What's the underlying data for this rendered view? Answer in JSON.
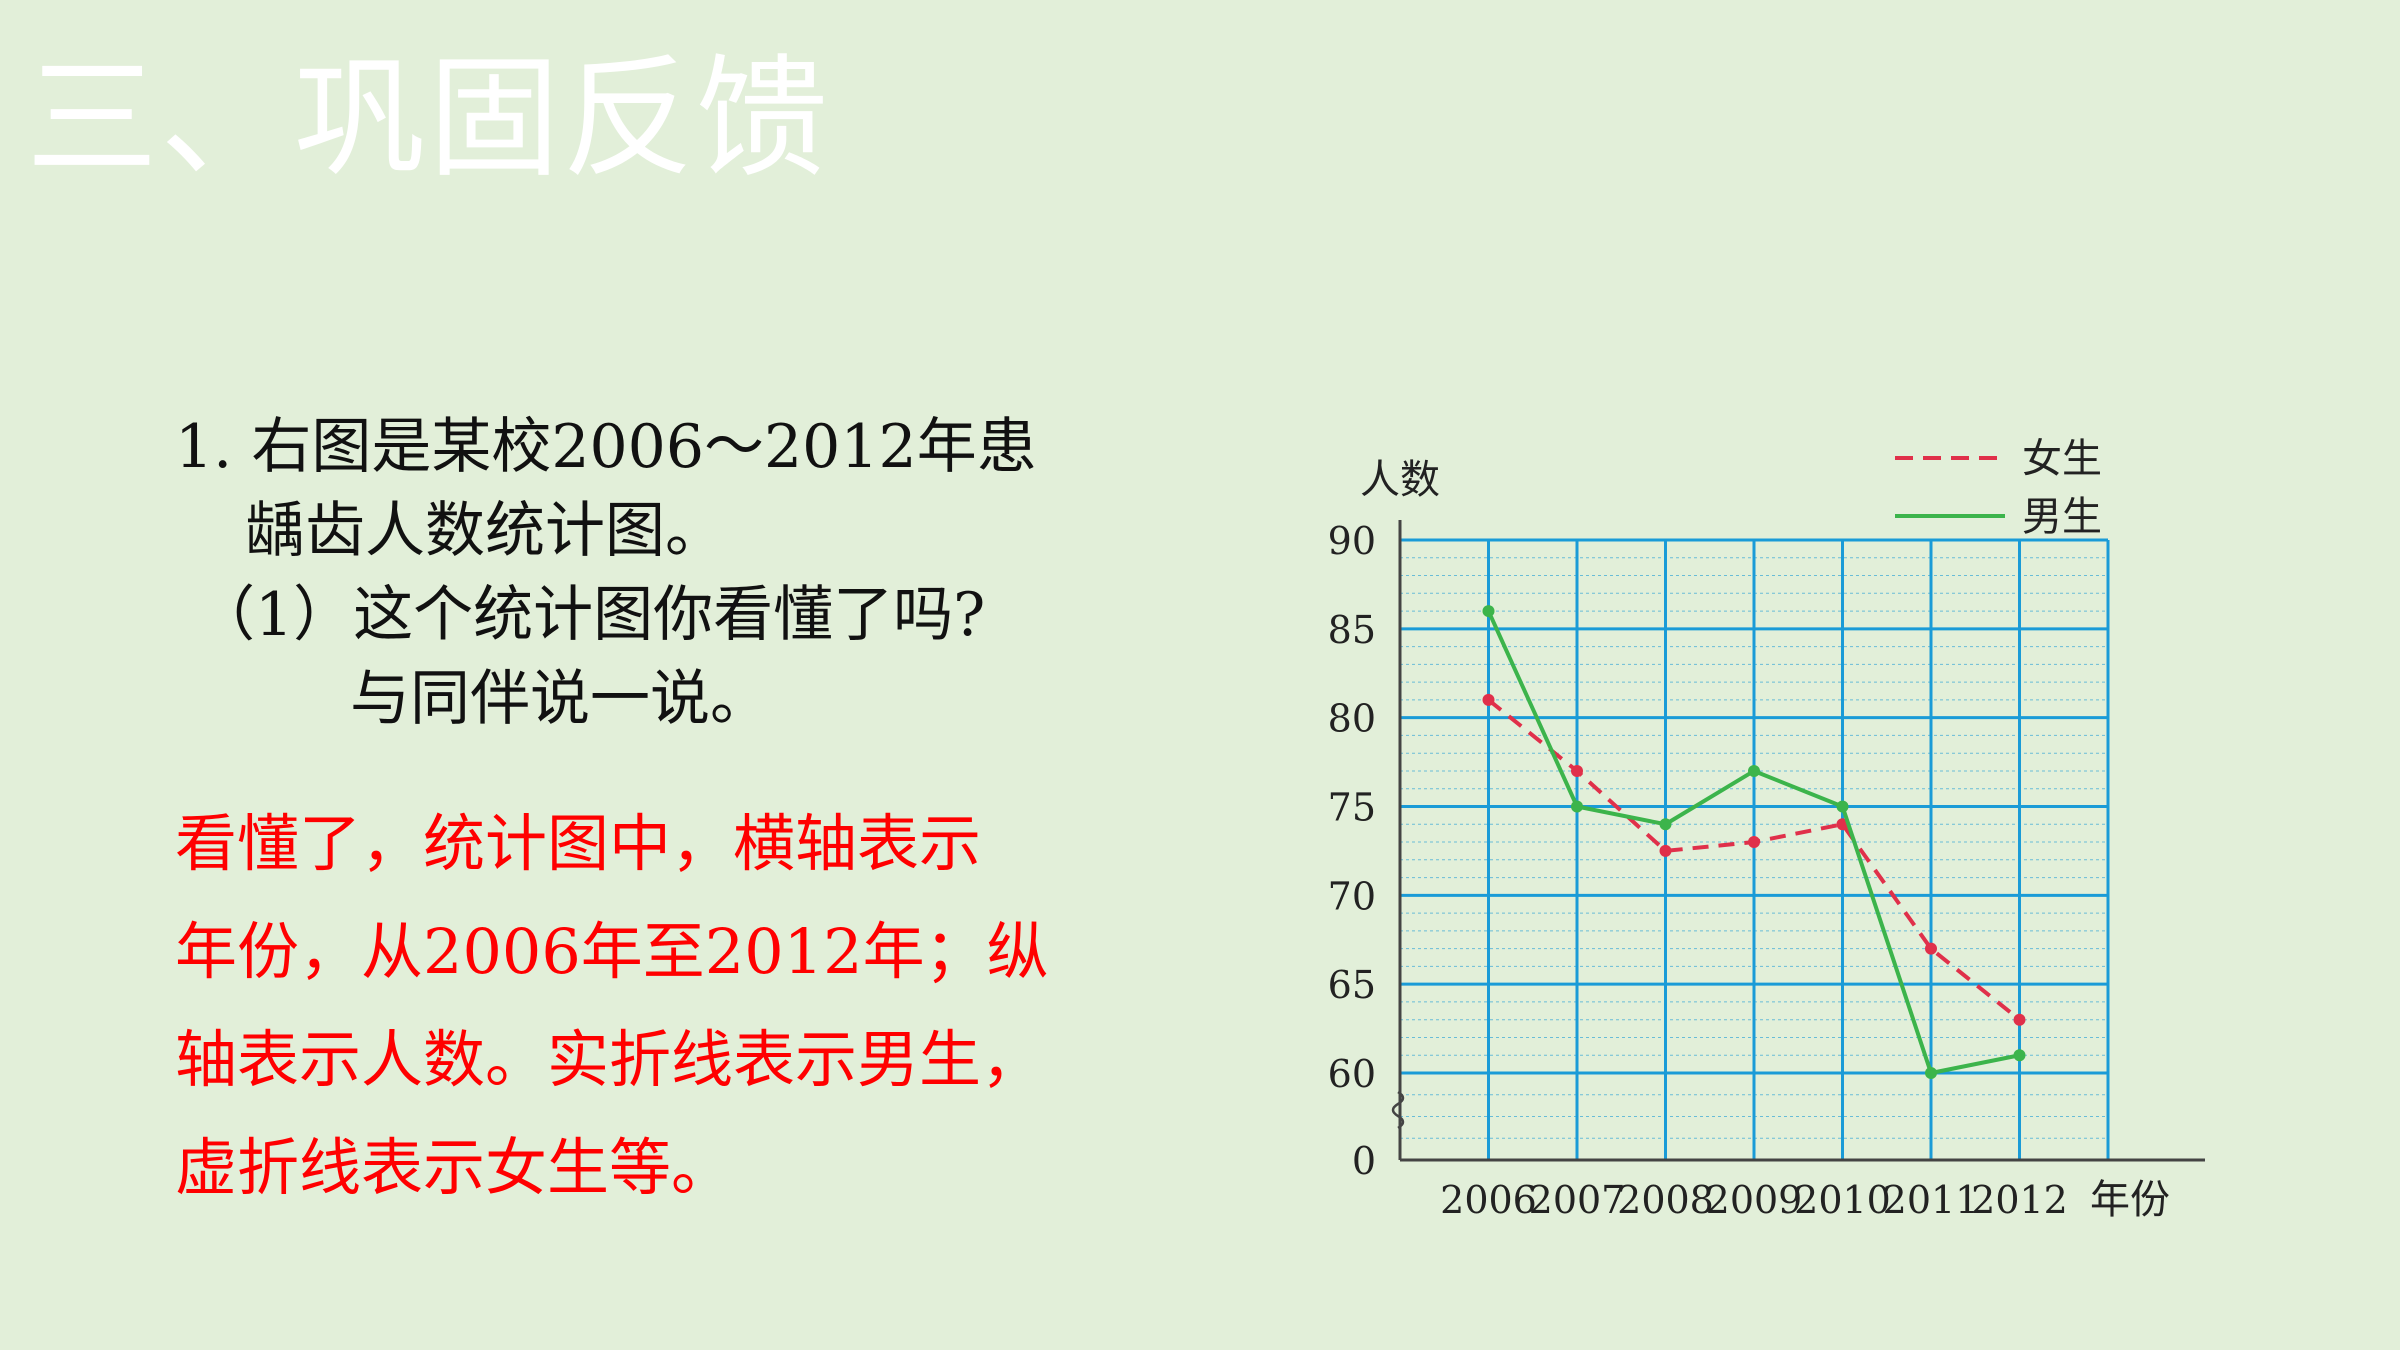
{
  "title": "三、巩固反馈",
  "question": {
    "line1": "1. 右图是某校2006～2012年患",
    "line2": "龋齿人数统计图。",
    "line3": "（1）这个统计图你看懂了吗?",
    "line4": "与同伴说一说。"
  },
  "answer": {
    "line1": "看懂了，统计图中，横轴表示",
    "line2": "年份，从2006年至2012年；纵",
    "line3": "轴表示人数。实折线表示男生，",
    "line4": "虚折线表示女生等。"
  },
  "colors": {
    "background": "#e2efd9",
    "title": "#ffffff",
    "answer": "#ff0000",
    "grid": "#1a9bd7",
    "girls": "#e0304a",
    "boys": "#3cb44b"
  },
  "chart_data": {
    "type": "line",
    "xlabel": "年份",
    "ylabel": "人数",
    "categories": [
      "2006",
      "2007",
      "2008",
      "2009",
      "2010",
      "2011",
      "2012"
    ],
    "y_ticks": [
      "0",
      "60",
      "65",
      "70",
      "75",
      "80",
      "85",
      "90"
    ],
    "ylim": [
      60,
      90
    ],
    "axis_break": true,
    "grid": true,
    "legend_position": "top-right",
    "series": [
      {
        "name": "女生",
        "style": "dashed",
        "values": [
          81,
          77,
          72.5,
          73,
          74,
          67,
          63
        ]
      },
      {
        "name": "男生",
        "style": "solid",
        "values": [
          86,
          75,
          74,
          77,
          75,
          60,
          61
        ]
      }
    ]
  }
}
